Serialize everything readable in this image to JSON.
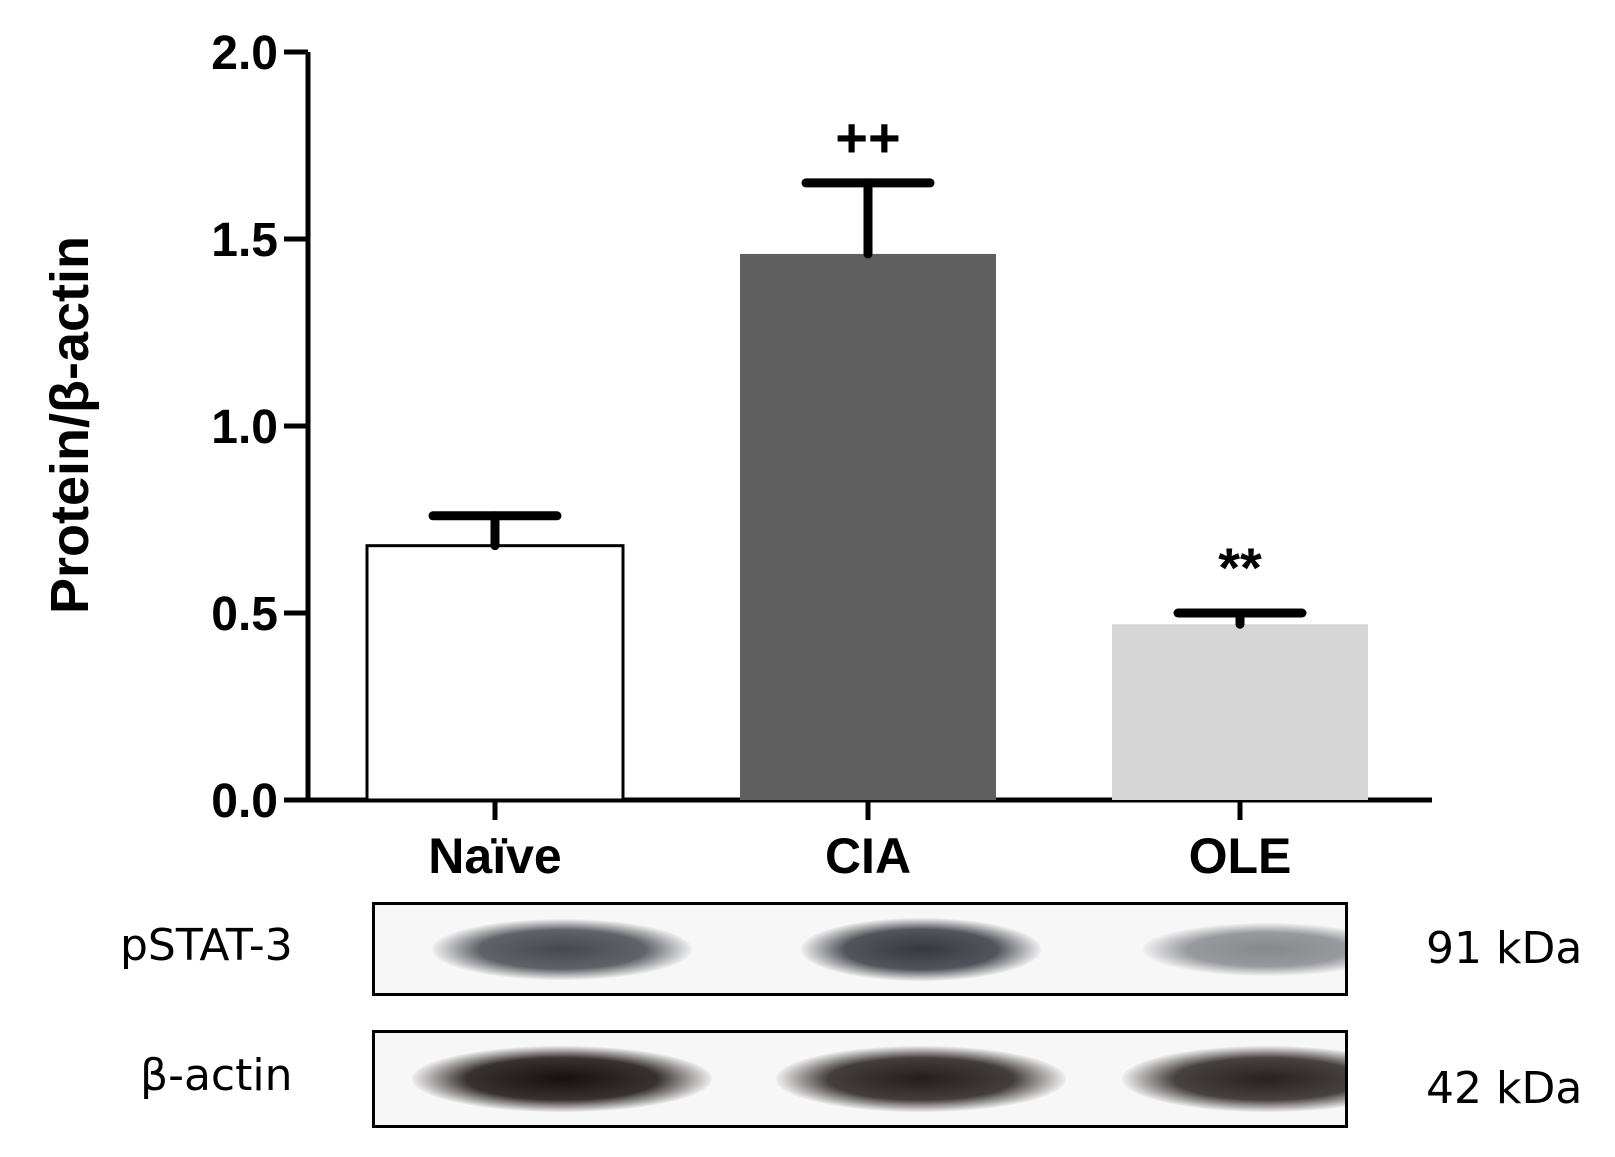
{
  "chart_data": {
    "type": "bar",
    "categories": [
      "Naïve",
      "CIA",
      "OLE"
    ],
    "values": [
      0.68,
      1.46,
      0.47
    ],
    "errors": [
      0.08,
      0.19,
      0.03
    ],
    "bar_colors": [
      "#ffffff",
      "#5f5f5f",
      "#d6d6d6"
    ],
    "annotations": [
      "",
      "++",
      "**"
    ],
    "ylabel": "Protein/β-actin",
    "xlabel": "",
    "title": "",
    "ylim": [
      0,
      2.0
    ],
    "yticks": [
      "0.0",
      "0.5",
      "1.0",
      "1.5",
      "2.0"
    ],
    "grid": false
  },
  "blots": [
    {
      "label": "pSTAT-3",
      "mw": "91 kDa",
      "band_intensity": [
        0.75,
        0.85,
        0.35
      ]
    },
    {
      "label": "β-actin",
      "mw": "42 kDa",
      "band_intensity": [
        1.0,
        0.92,
        0.9
      ]
    }
  ]
}
